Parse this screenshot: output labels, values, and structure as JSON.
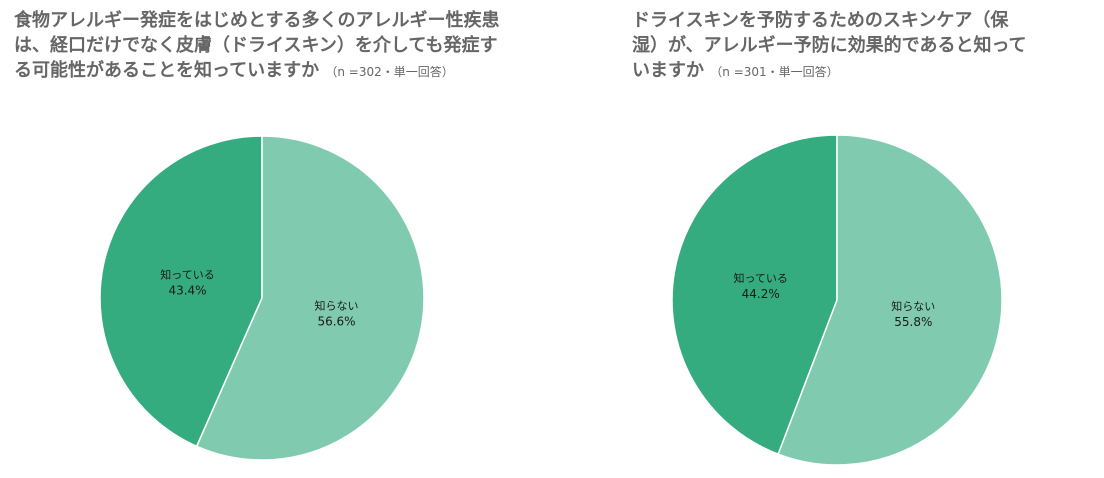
{
  "chart_data": [
    {
      "type": "pie",
      "title": "食物アレルギー発症をはじめとする多くのアレルギー性疾患は、経口だけでなく皮膚（ドライスキン）を介しても発症する可能性があることを知っていますか",
      "title_lines": [
        "食物アレルギー発症をはじめとする多くのアレルギー性疾患",
        "は、経口だけでなく皮膚（ドライスキン）を介しても発症す",
        "る可能性があることを知っていますか"
      ],
      "note": "（n =302・単一回答）",
      "slices": [
        {
          "label": "知っている",
          "value": 43.4,
          "value_label": "43.4%",
          "color": "#34ac80"
        },
        {
          "label": "知らない",
          "value": 56.6,
          "value_label": "56.6%",
          "color": "#80cbb0"
        }
      ]
    },
    {
      "type": "pie",
      "title": "ドライスキンを予防するためのスキンケア（保湿）が、アレルギー予防に効果的であると知っていますか",
      "title_lines": [
        "ドライスキンを予防するためのスキンケア（保",
        "湿）が、アレルギー予防に効果的であると知って",
        "いますか"
      ],
      "note": "（n =301・単一回答）",
      "slices": [
        {
          "label": "知っている",
          "value": 44.2,
          "value_label": "44.2%",
          "color": "#34ac80"
        },
        {
          "label": "知らない",
          "value": 55.8,
          "value_label": "55.8%",
          "color": "#80cbb0"
        }
      ]
    }
  ]
}
